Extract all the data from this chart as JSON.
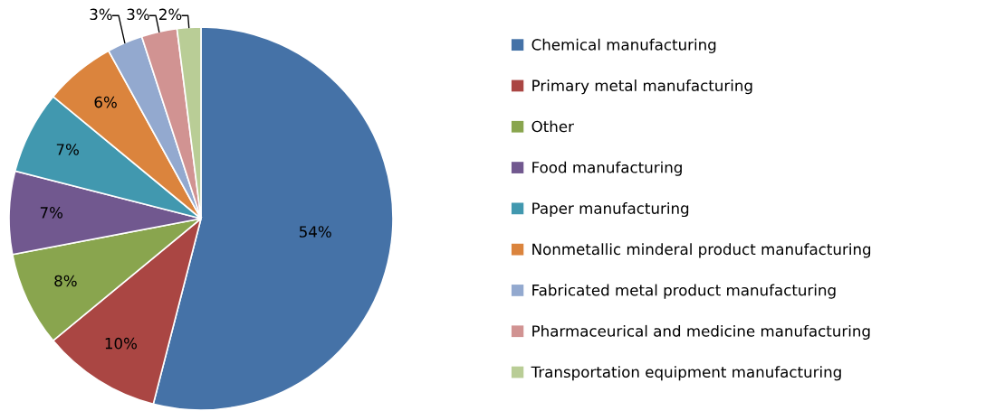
{
  "chart_data": {
    "type": "pie",
    "categories": [
      "Chemical manufacturing",
      "Primary metal manufacturing",
      "Other",
      "Food manufacturing",
      "Paper manufacturing",
      "Nonmetallic minderal product manufacturing",
      "Fabricated metal product manufacturing",
      "Pharmaceurical and medicine manufacturing",
      "Transportation equipment manufacturing"
    ],
    "values": [
      54,
      10,
      8,
      7,
      7,
      6,
      3,
      3,
      2
    ],
    "value_labels": [
      "54%",
      "10%",
      "8%",
      "7%",
      "7%",
      "6%",
      "3%",
      "3%",
      "2%"
    ],
    "colors": [
      "#4572a7",
      "#aa4643",
      "#89a54e",
      "#71588f",
      "#4198af",
      "#db843d",
      "#93a9cf",
      "#d19392",
      "#b9cd96"
    ],
    "legend": "right"
  }
}
